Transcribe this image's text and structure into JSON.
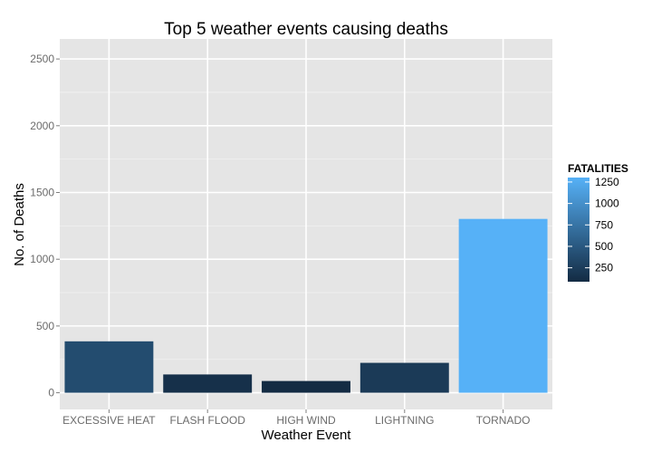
{
  "chart_data": {
    "type": "bar",
    "title": "Top 5 weather events causing deaths",
    "xlabel": "Weather Event",
    "ylabel": "No. of Deaths",
    "categories": [
      "EXCESSIVE HEAT",
      "FLASH FLOOD",
      "HIGH WIND",
      "LIGHTNING",
      "TORNADO"
    ],
    "values": [
      385,
      137,
      88,
      224,
      1302
    ],
    "ylim": [
      -125,
      2650
    ],
    "yticks": [
      0,
      500,
      1000,
      1500,
      2000,
      2500
    ],
    "grid": true,
    "legend": {
      "title": "FATALITIES",
      "placement": "right",
      "ticks": [
        250,
        500,
        750,
        1000,
        1250
      ],
      "range": [
        88,
        1302
      ],
      "color_low": "#132B43",
      "color_high": "#56B1F7"
    },
    "panel_background": "#e5e5e5",
    "grid_color": "#ffffff"
  }
}
